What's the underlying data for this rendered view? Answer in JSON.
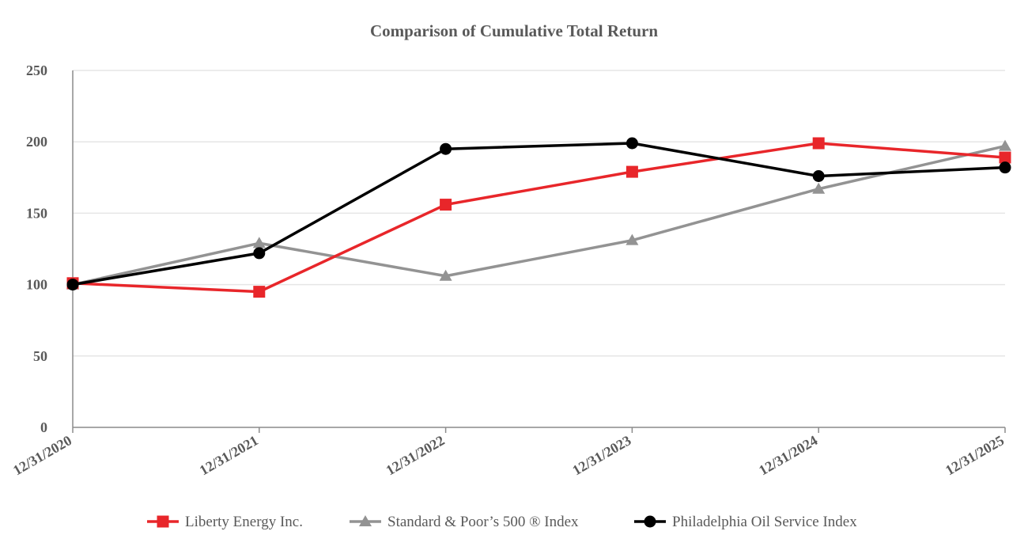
{
  "chart_data": {
    "type": "line",
    "title": "Comparison of Cumulative Total Return",
    "x": [
      "12/31/2020",
      "12/31/2021",
      "12/31/2022",
      "12/31/2023",
      "12/31/2024",
      "12/31/2025"
    ],
    "ylim": [
      0,
      250
    ],
    "yticks": [
      0,
      50,
      100,
      150,
      200,
      250
    ],
    "grid": true,
    "legend_position": "bottom",
    "series": [
      {
        "name": "Liberty Energy Inc.",
        "color": "#e8262a",
        "marker": "square",
        "values": [
          101,
          95,
          156,
          179,
          199,
          189
        ]
      },
      {
        "name": "Standard & Poor’s 500 ® Index",
        "color": "#939393",
        "marker": "triangle",
        "values": [
          100,
          129,
          106,
          131,
          167,
          197
        ]
      },
      {
        "name": "Philadelphia Oil Service Index",
        "color": "#000000",
        "marker": "circle",
        "values": [
          100,
          122,
          195,
          199,
          176,
          182
        ]
      }
    ]
  }
}
